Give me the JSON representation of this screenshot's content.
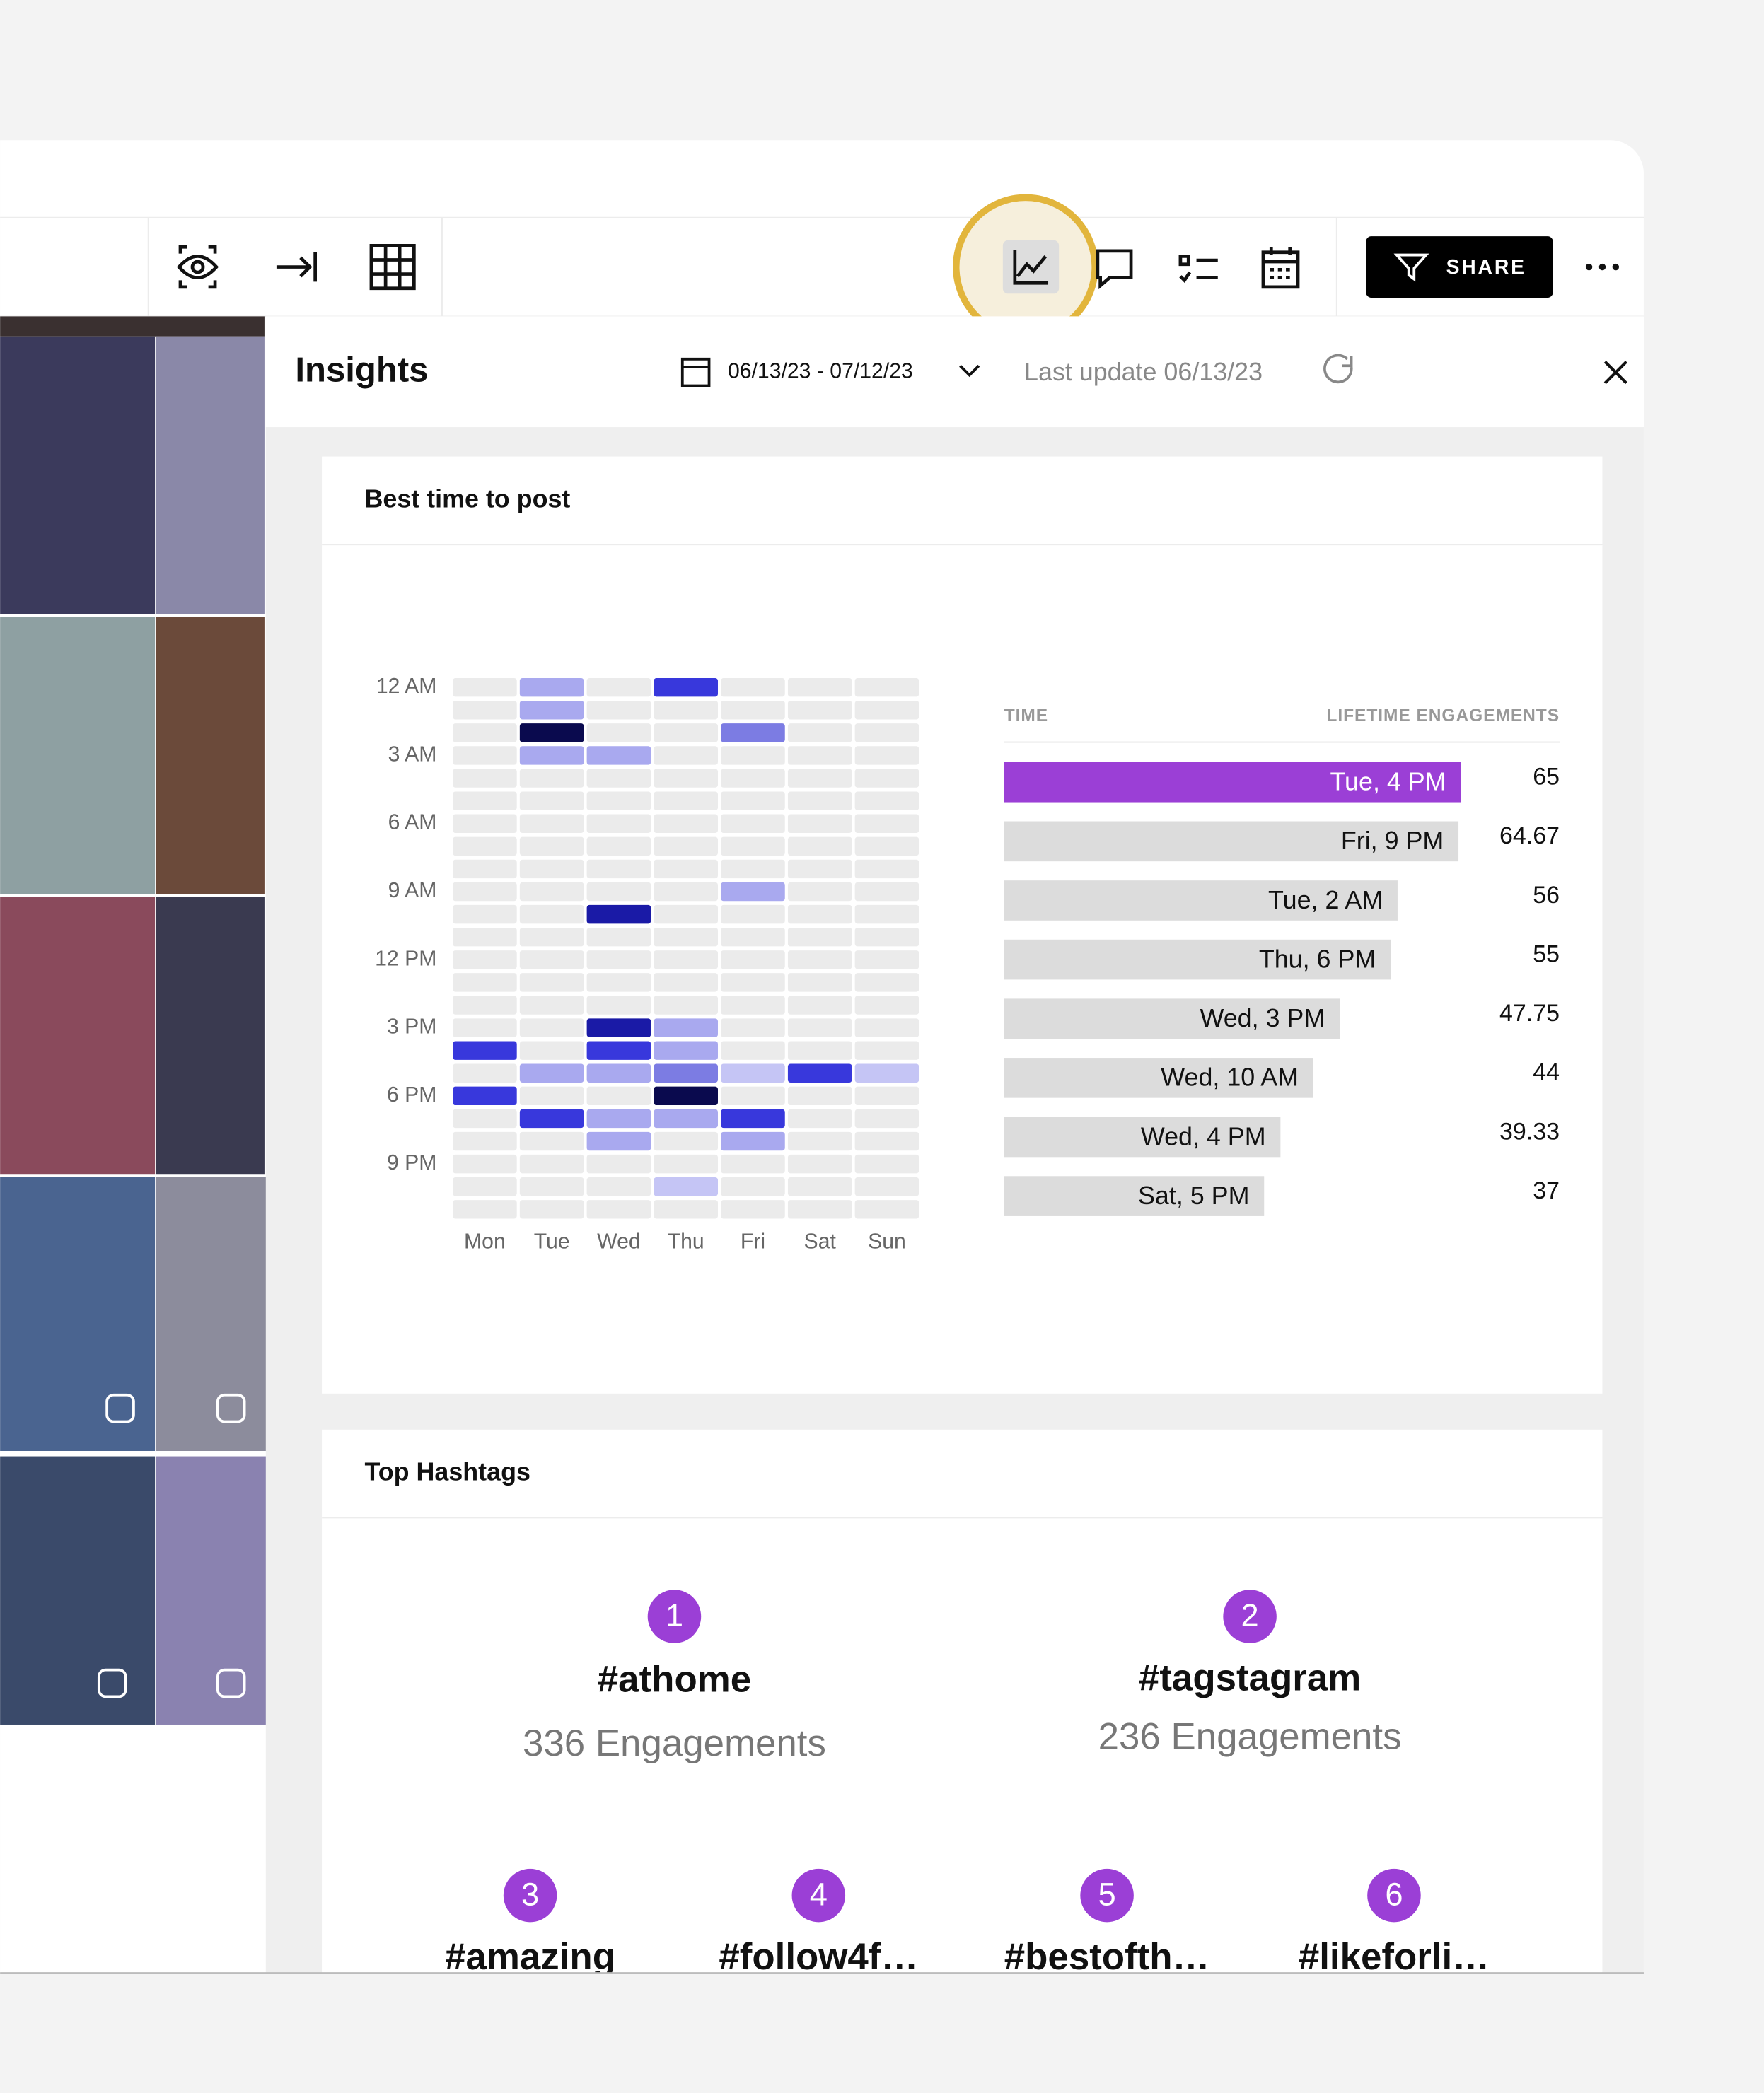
{
  "toolbar": {
    "share": "SHARE"
  },
  "insights": {
    "title": "Insights",
    "date_range": "06/13/23 - 07/12/23",
    "last_update": "Last update 06/13/23"
  },
  "best_time": {
    "title": "Best time to post"
  },
  "chart_data": [
    {
      "type": "heatmap",
      "categories": [
        "Mon",
        "Tue",
        "Wed",
        "Thu",
        "Fri",
        "Sat",
        "Sun"
      ],
      "ylim": [
        0,
        23
      ],
      "yticks": [
        {
          "value": 0,
          "label": "12 AM"
        },
        {
          "value": 3,
          "label": "3 AM"
        },
        {
          "value": 6,
          "label": "6 AM"
        },
        {
          "value": 9,
          "label": "9 AM"
        },
        {
          "value": 12,
          "label": "12 PM"
        },
        {
          "value": 15,
          "label": "3 PM"
        },
        {
          "value": 18,
          "label": "6 PM"
        },
        {
          "value": 21,
          "label": "9 PM"
        }
      ],
      "color_scale": [
        "#ebebeb",
        "#c5c5f5",
        "#a9a9ef",
        "#7c7ce3",
        "#3838dc",
        "#1a1aa6",
        "#0a0a4e"
      ],
      "values": [
        [
          0,
          0,
          0,
          0,
          0,
          0,
          0,
          0,
          0,
          0,
          0,
          0,
          0,
          0,
          0,
          0,
          4,
          0,
          4,
          0,
          0,
          0,
          0,
          0
        ],
        [
          2,
          2,
          6,
          2,
          0,
          0,
          0,
          0,
          0,
          0,
          0,
          0,
          0,
          0,
          0,
          0,
          0,
          2,
          0,
          4,
          0,
          0,
          0,
          0
        ],
        [
          0,
          0,
          0,
          2,
          0,
          0,
          0,
          0,
          0,
          0,
          5,
          0,
          0,
          0,
          0,
          5,
          4,
          2,
          0,
          2,
          2,
          0,
          0,
          0
        ],
        [
          4,
          0,
          0,
          0,
          0,
          0,
          0,
          0,
          0,
          0,
          0,
          0,
          0,
          0,
          0,
          2,
          2,
          3,
          6,
          2,
          0,
          0,
          1,
          0
        ],
        [
          0,
          0,
          3,
          0,
          0,
          0,
          0,
          0,
          0,
          2,
          0,
          0,
          0,
          0,
          0,
          0,
          0,
          1,
          0,
          4,
          2,
          0,
          0,
          0
        ],
        [
          0,
          0,
          0,
          0,
          0,
          0,
          0,
          0,
          0,
          0,
          0,
          0,
          0,
          0,
          0,
          0,
          0,
          4,
          0,
          0,
          0,
          0,
          0,
          0
        ],
        [
          0,
          0,
          0,
          0,
          0,
          0,
          0,
          0,
          0,
          0,
          0,
          0,
          0,
          0,
          0,
          0,
          0,
          1,
          0,
          0,
          0,
          0,
          0,
          0
        ]
      ]
    },
    {
      "type": "bar",
      "x_label": "TIME",
      "y_label": "LIFETIME ENGAGEMENTS",
      "xlim": [
        0,
        65
      ],
      "categories": [
        "Tue, 4 PM",
        "Fri, 9 PM",
        "Tue, 2 AM",
        "Thu, 6 PM",
        "Wed, 3 PM",
        "Wed, 10 AM",
        "Wed, 4 PM",
        "Sat, 5 PM"
      ],
      "values": [
        65,
        64.67,
        56,
        55,
        47.75,
        44,
        39.33,
        37
      ],
      "colors": [
        "#9b3fd6",
        "#dcdcdc",
        "#dcdcdc",
        "#dcdcdc",
        "#dcdcdc",
        "#dcdcdc",
        "#dcdcdc",
        "#dcdcdc"
      ]
    }
  ],
  "top_hashtags": {
    "title": "Top Hashtags",
    "items": [
      {
        "rank": "1",
        "tag": "#athome",
        "engagements": "336 Engagements"
      },
      {
        "rank": "2",
        "tag": "#tagstagram",
        "engagements": "236 Engagements"
      },
      {
        "rank": "3",
        "tag": "#amazing"
      },
      {
        "rank": "4",
        "tag": "#follow4f…"
      },
      {
        "rank": "5",
        "tag": "#bestofth…"
      },
      {
        "rank": "6",
        "tag": "#likeforli…"
      }
    ]
  }
}
